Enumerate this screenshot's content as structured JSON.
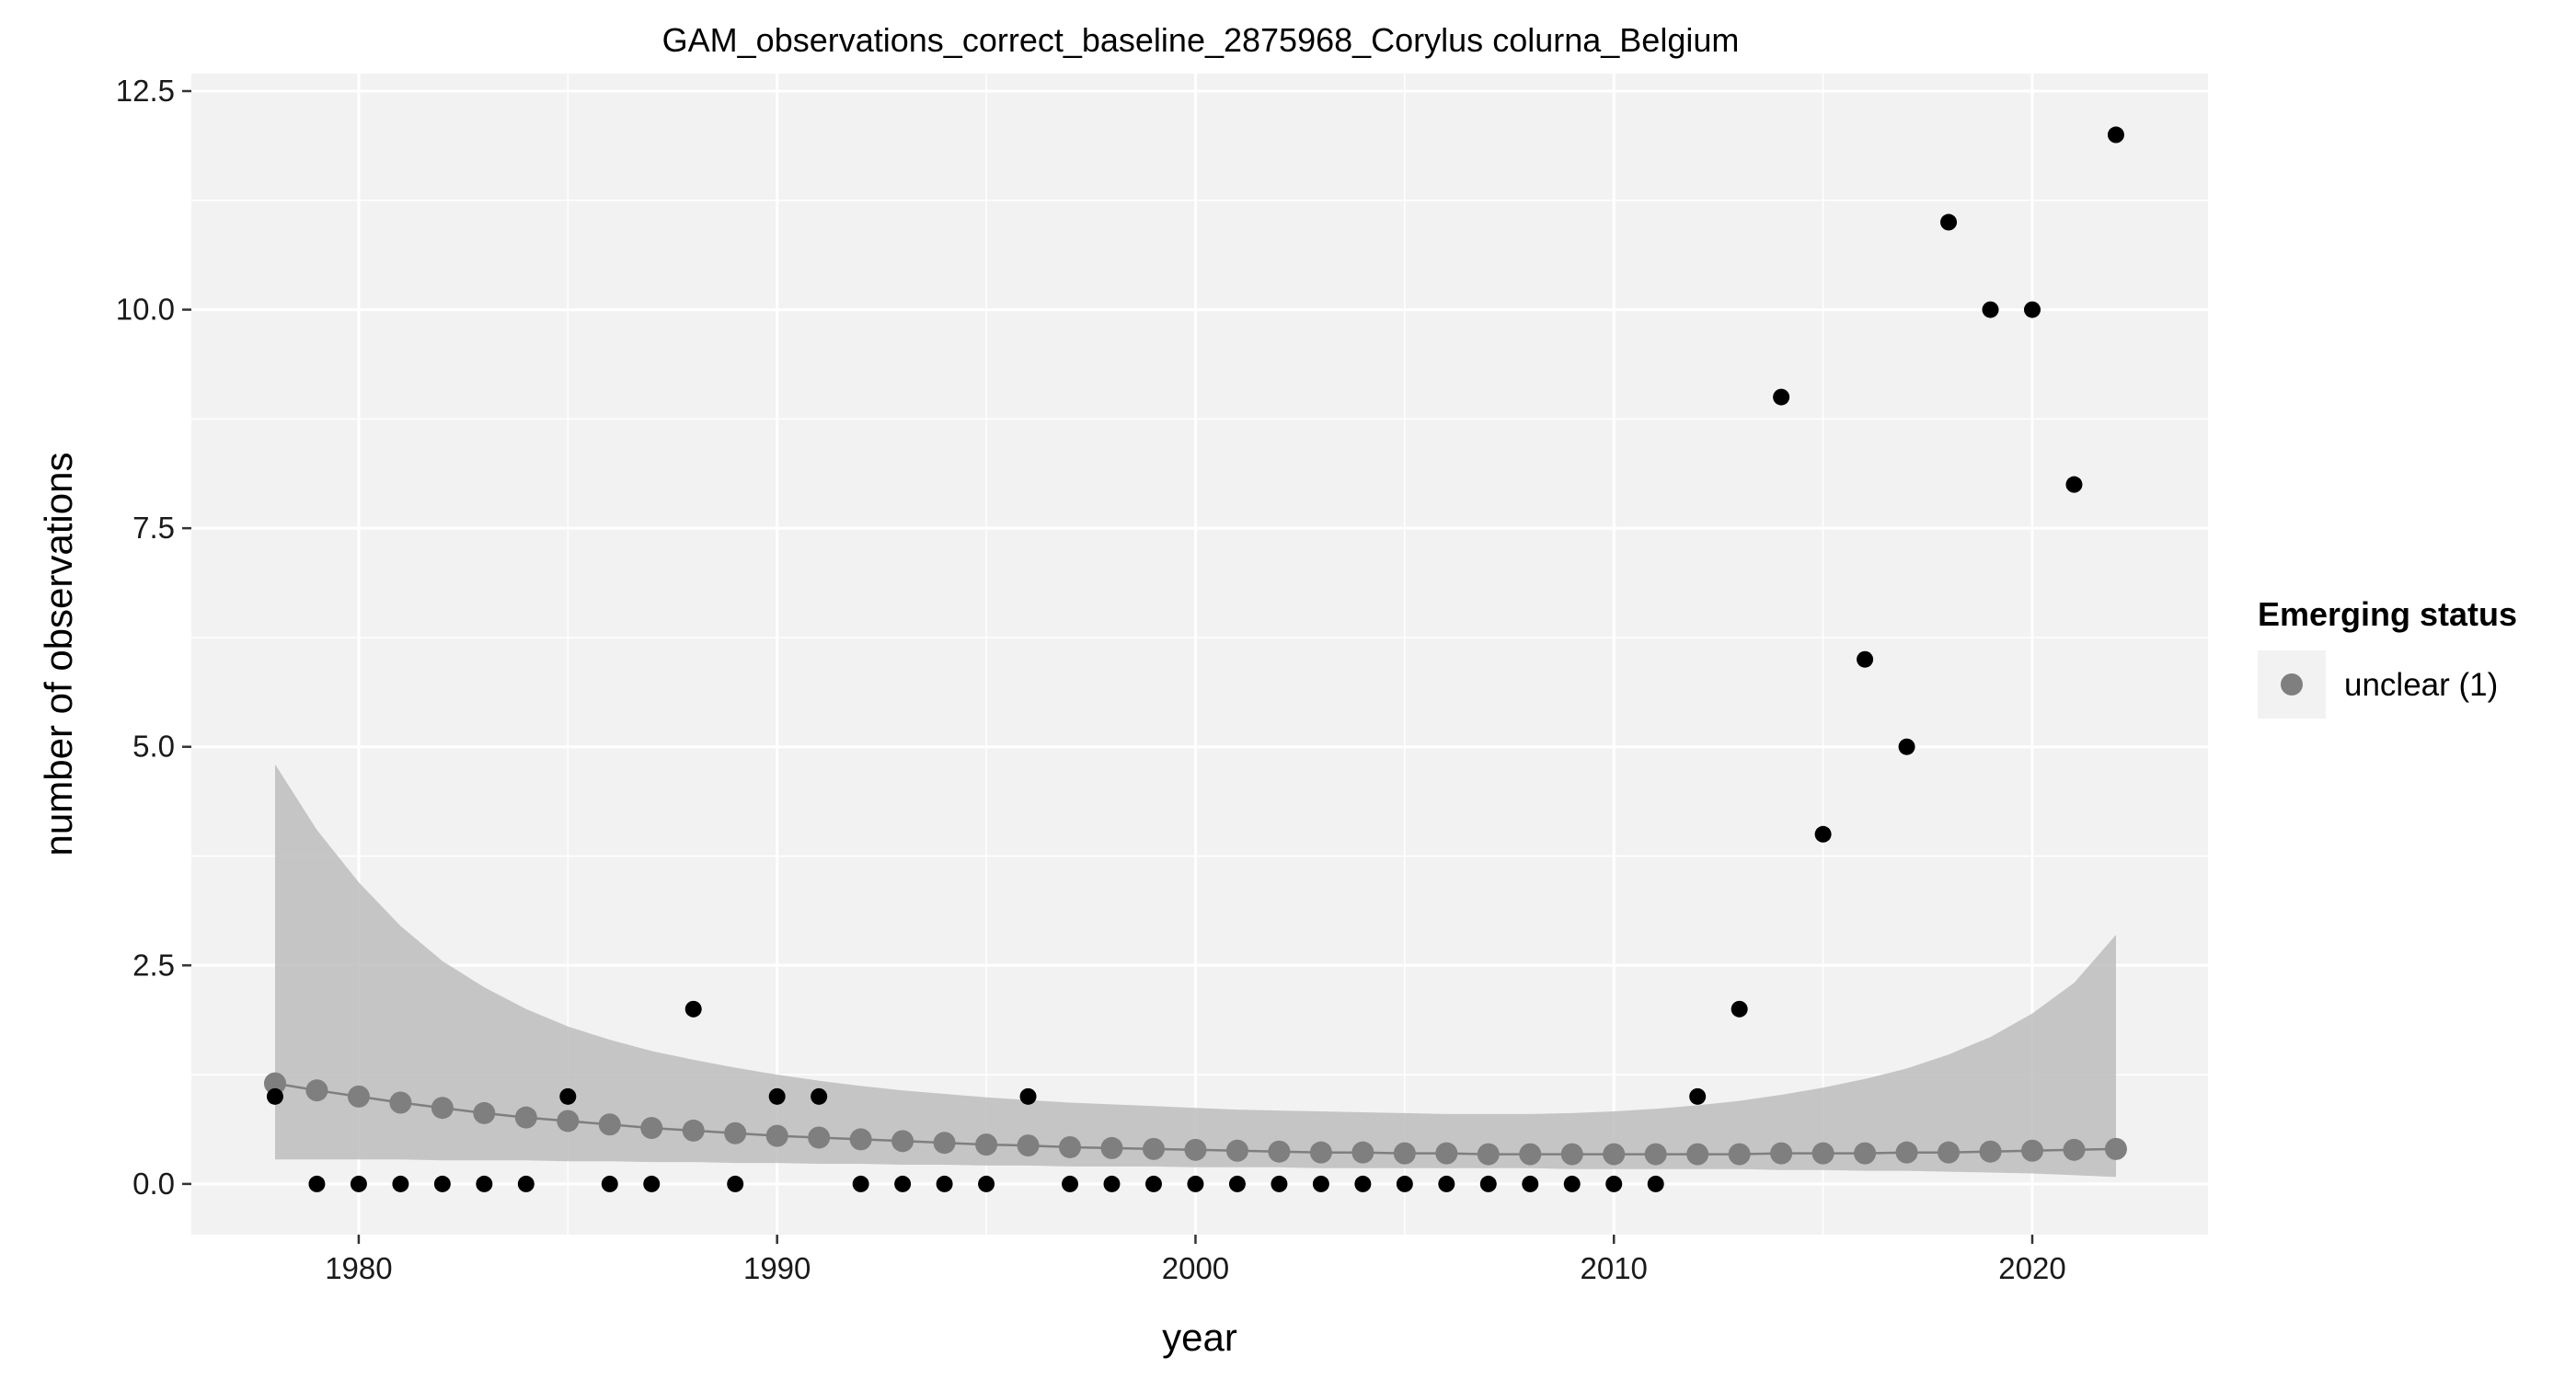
{
  "chart_data": {
    "type": "scatter",
    "title": "GAM_observations_correct_baseline_2875968_Corylus colurna_Belgium",
    "xlabel": "year",
    "ylabel": "number of observations",
    "xlim": [
      1976,
      2024.2
    ],
    "ylim": [
      -0.58,
      12.7
    ],
    "x_ticks": [
      1980,
      1990,
      2000,
      2010,
      2020
    ],
    "y_ticks": [
      0.0,
      2.5,
      5.0,
      7.5,
      10.0,
      12.5
    ],
    "x_tick_labels": [
      "1980",
      "1990",
      "2000",
      "2010",
      "2020"
    ],
    "y_tick_labels": [
      "0.0",
      "2.5",
      "5.0",
      "7.5",
      "10.0",
      "12.5"
    ],
    "grid": true,
    "legend_position": "right",
    "legend": {
      "title": "Emerging status",
      "entries": [
        {
          "label": "unclear (1)",
          "color": "#7f7f7f"
        }
      ]
    },
    "colors": {
      "panel": "#f2f2f2",
      "grid": "#ffffff",
      "observed_points": "#000000",
      "fit": "#7f7f7f",
      "ribbon": "#bdbdbd"
    },
    "series": [
      {
        "kind": "observed",
        "x": [
          1978,
          1979,
          1980,
          1981,
          1982,
          1983,
          1984,
          1985,
          1986,
          1987,
          1988,
          1989,
          1990,
          1991,
          1992,
          1993,
          1994,
          1995,
          1996,
          1997,
          1998,
          1999,
          2000,
          2001,
          2002,
          2003,
          2004,
          2005,
          2006,
          2007,
          2008,
          2009,
          2010,
          2011,
          2012,
          2013,
          2014,
          2015,
          2016,
          2017,
          2018,
          2019,
          2020,
          2021,
          2022
        ],
        "y": [
          1,
          0,
          0,
          0,
          0,
          0,
          0,
          1,
          0,
          0,
          2,
          0,
          1,
          1,
          0,
          0,
          0,
          0,
          1,
          0,
          0,
          0,
          0,
          0,
          0,
          0,
          0,
          0,
          0,
          0,
          0,
          0,
          0,
          0,
          1,
          2,
          9,
          4,
          6,
          5,
          11,
          10,
          10,
          8,
          12
        ]
      },
      {
        "name": "unclear (1)",
        "kind": "fit",
        "x": [
          1978,
          1979,
          1980,
          1981,
          1982,
          1983,
          1984,
          1985,
          1986,
          1987,
          1988,
          1989,
          1990,
          1991,
          1992,
          1993,
          1994,
          1995,
          1996,
          1997,
          1998,
          1999,
          2000,
          2001,
          2002,
          2003,
          2004,
          2005,
          2006,
          2007,
          2008,
          2009,
          2010,
          2011,
          2012,
          2013,
          2014,
          2015,
          2016,
          2017,
          2018,
          2019,
          2020,
          2021,
          2022
        ],
        "y": [
          1.15,
          1.07,
          1.0,
          0.93,
          0.87,
          0.81,
          0.76,
          0.72,
          0.68,
          0.64,
          0.61,
          0.58,
          0.55,
          0.53,
          0.51,
          0.49,
          0.47,
          0.45,
          0.44,
          0.42,
          0.41,
          0.4,
          0.39,
          0.38,
          0.37,
          0.36,
          0.36,
          0.35,
          0.35,
          0.34,
          0.34,
          0.34,
          0.34,
          0.34,
          0.34,
          0.34,
          0.35,
          0.35,
          0.35,
          0.36,
          0.36,
          0.37,
          0.38,
          0.39,
          0.4
        ],
        "lower": [
          0.28,
          0.28,
          0.28,
          0.28,
          0.27,
          0.27,
          0.27,
          0.26,
          0.26,
          0.25,
          0.25,
          0.24,
          0.24,
          0.23,
          0.23,
          0.22,
          0.22,
          0.21,
          0.21,
          0.2,
          0.2,
          0.2,
          0.19,
          0.19,
          0.19,
          0.18,
          0.18,
          0.18,
          0.18,
          0.18,
          0.18,
          0.17,
          0.17,
          0.17,
          0.17,
          0.17,
          0.16,
          0.16,
          0.15,
          0.15,
          0.14,
          0.13,
          0.12,
          0.1,
          0.08
        ],
        "upper": [
          4.8,
          4.05,
          3.45,
          2.95,
          2.55,
          2.25,
          2.0,
          1.8,
          1.65,
          1.52,
          1.42,
          1.33,
          1.25,
          1.18,
          1.12,
          1.07,
          1.03,
          0.99,
          0.96,
          0.93,
          0.91,
          0.89,
          0.87,
          0.85,
          0.84,
          0.83,
          0.82,
          0.81,
          0.8,
          0.8,
          0.8,
          0.81,
          0.83,
          0.86,
          0.9,
          0.95,
          1.02,
          1.1,
          1.2,
          1.32,
          1.48,
          1.68,
          1.95,
          2.3,
          2.85
        ]
      }
    ]
  }
}
